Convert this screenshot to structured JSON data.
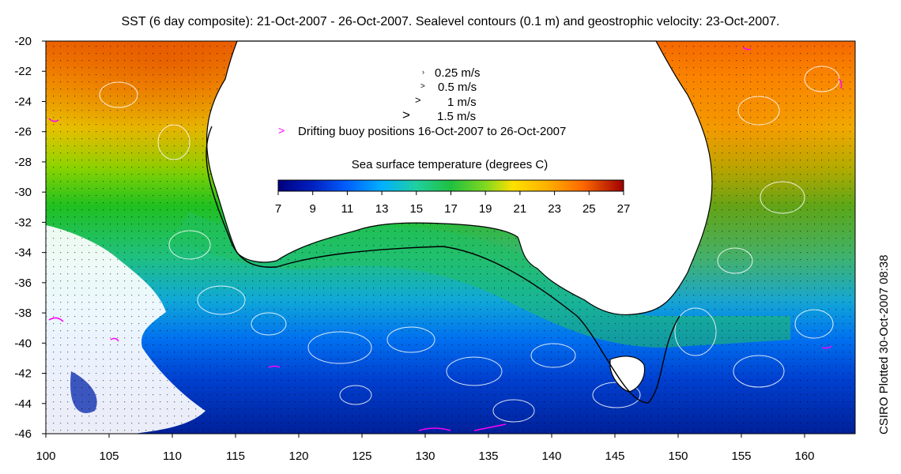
{
  "title": "SST (6 day composite): 21-Oct-2007 - 26-Oct-2007. Sealevel contours (0.1 m) and geostrophic velocity: 23-Oct-2007.",
  "credit": "CSIRO Plotted 30-Oct-2007 08:38",
  "axes": {
    "lon": {
      "min": 100,
      "max": 164,
      "ticks": [
        "100",
        "105",
        "110",
        "115",
        "120",
        "125",
        "130",
        "135",
        "140",
        "145",
        "150",
        "155",
        "160"
      ]
    },
    "lat": {
      "min": -46,
      "max": -20,
      "ticks": [
        "-20",
        "-22",
        "-24",
        "-26",
        "-28",
        "-30",
        "-32",
        "-34",
        "-36",
        "-38",
        "-40",
        "-42",
        "-44",
        "-46"
      ]
    }
  },
  "velocity_legend": {
    "items": [
      {
        "label": "0.25 m/s"
      },
      {
        "label": "0.5 m/s"
      },
      {
        "label": "1 m/s"
      },
      {
        "label": "1.5 m/s"
      }
    ],
    "buoy_label": "Drifting buoy positions 16-Oct-2007 to 26-Oct-2007",
    "buoy_symbol": ">",
    "buoy_color": "#ff00ff"
  },
  "colorbar": {
    "title": "Sea surface temperature (degrees C)",
    "ticks": [
      "7",
      "9",
      "11",
      "13",
      "15",
      "17",
      "19",
      "21",
      "23",
      "25",
      "27"
    ],
    "min": 7,
    "max": 27,
    "colors": [
      "#00007f",
      "#0020c0",
      "#0060ff",
      "#00b0ff",
      "#20d0a0",
      "#20c040",
      "#40d020",
      "#b0e020",
      "#ffe000",
      "#ffb000",
      "#ff7000",
      "#e03000",
      "#a00000"
    ]
  },
  "colors": {
    "land": "#ffffff",
    "coastline": "#000000",
    "contours": "#ffffff",
    "shelf_line": "#000000"
  }
}
